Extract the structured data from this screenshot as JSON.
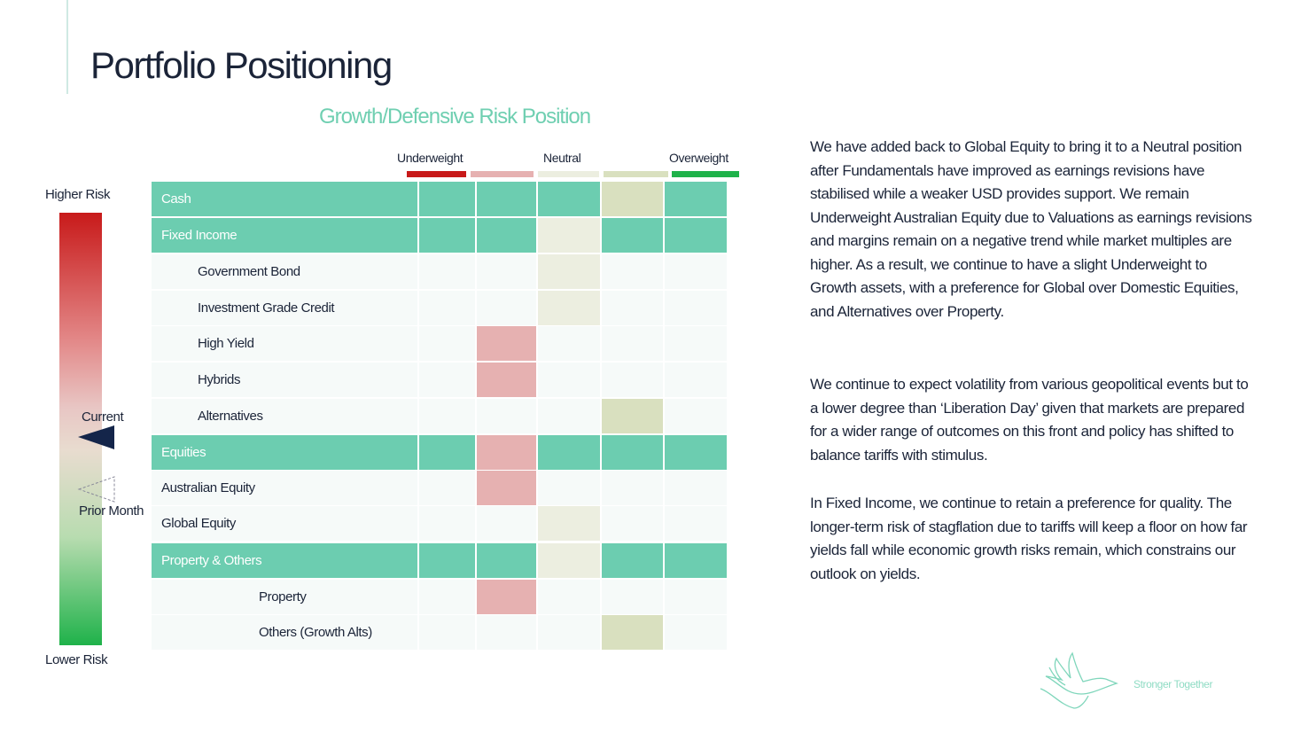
{
  "title": "Portfolio Positioning",
  "subtitle": "Growth/Defensive Risk Position",
  "legend": [
    {
      "label": "Underweight",
      "color": "#c81a1a"
    },
    {
      "label": "",
      "color": "#e6b1b1"
    },
    {
      "label": "Neutral",
      "color": "#eceee0"
    },
    {
      "label": "",
      "color": "#d9e0bf"
    },
    {
      "label": "Overweight",
      "color": "#1fb24a"
    }
  ],
  "scale": {
    "top": "Higher Risk",
    "bottom": "Lower Risk",
    "current": "Current",
    "prior": "Prior Month"
  },
  "rows": [
    {
      "label": "Cash",
      "type": "header",
      "position": 3
    },
    {
      "label": "Fixed Income",
      "type": "header",
      "position": 2
    },
    {
      "label": "Government Bond",
      "type": "sub",
      "indent": 1,
      "position": 2
    },
    {
      "label": "Investment Grade Credit",
      "type": "sub",
      "indent": 1,
      "position": 2
    },
    {
      "label": "High Yield",
      "type": "sub",
      "indent": 1,
      "position": 1
    },
    {
      "label": "Hybrids",
      "type": "sub",
      "indent": 1,
      "position": 1
    },
    {
      "label": "Alternatives",
      "type": "sub",
      "indent": 1,
      "position": 3
    },
    {
      "label": "Equities",
      "type": "header",
      "position": 1
    },
    {
      "label": "Australian Equity",
      "type": "sub",
      "indent": 0,
      "position": 1
    },
    {
      "label": "Global Equity",
      "type": "sub",
      "indent": 0,
      "position": 2
    },
    {
      "label": "Property & Others",
      "type": "header",
      "position": 2
    },
    {
      "label": "Property",
      "type": "sub",
      "indent": 2,
      "position": 1
    },
    {
      "label": "Others (Growth Alts)",
      "type": "sub",
      "indent": 2,
      "position": 3
    }
  ],
  "commentary": [
    "We have added back to Global Equity to bring it to a Neutral position after Fundamentals have improved as earnings revisions have stabilised while a weaker USD provides support. We remain Underweight Australian Equity due to Valuations as earnings revisions and margins remain on a negative trend while market multiples are higher. As a result, we continue to have a slight Underweight to Growth assets, with a preference for Global over Domestic Equities, and Alternatives over Property.",
    "We continue to expect volatility from various geopolitical events but to a lower degree than ‘Liberation Day’ given that markets are prepared for a wider range of outcomes on this front and policy has shifted to balance tariffs with stimulus.",
    "In Fixed Income, we continue to retain a preference for quality. The longer-term risk of stagflation due to tariffs will keep a floor on how far yields fall while economic growth risks remain, which constrains our outlook on yields."
  ],
  "footer": {
    "tagline": "Stronger Together"
  }
}
